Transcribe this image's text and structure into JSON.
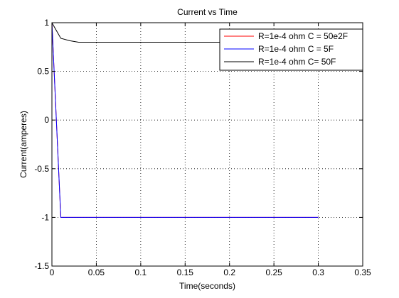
{
  "chart_data": {
    "type": "line",
    "title": "Current vs Time",
    "xlabel": "Time(seconds)",
    "ylabel": "Current(amperes)",
    "xlim": [
      0,
      0.35
    ],
    "ylim": [
      -1.5,
      1
    ],
    "xticks": [
      0,
      0.05,
      0.1,
      0.15,
      0.2,
      0.25,
      0.3,
      0.35
    ],
    "xtick_labels": [
      "0",
      "0.05",
      "0.1",
      "0.15",
      "0.2",
      "0.25",
      "0.3",
      "0.35"
    ],
    "yticks": [
      -1.5,
      -1,
      -0.5,
      0,
      0.5,
      1
    ],
    "ytick_labels": [
      "-1.5",
      "-1",
      "-0.5",
      "0",
      "0.5",
      "1"
    ],
    "grid": true,
    "grid_style": "dotted",
    "legend_position": "top-right",
    "series": [
      {
        "name": "R=1e-4 ohm C = 50e2F",
        "color": "#ff0000",
        "points": [
          [
            0,
            1
          ],
          [
            0.01,
            -1
          ],
          [
            0.02,
            -1
          ],
          [
            0.05,
            -1
          ],
          [
            0.1,
            -1
          ],
          [
            0.15,
            -1
          ],
          [
            0.2,
            -1
          ],
          [
            0.25,
            -1
          ],
          [
            0.3,
            -1
          ]
        ]
      },
      {
        "name": "R=1e-4 ohm C = 5F",
        "color": "#0000ff",
        "points": [
          [
            0,
            1
          ],
          [
            0.01,
            -1
          ],
          [
            0.02,
            -1
          ],
          [
            0.05,
            -1
          ],
          [
            0.1,
            -1
          ],
          [
            0.15,
            -1
          ],
          [
            0.2,
            -1
          ],
          [
            0.25,
            -1
          ],
          [
            0.3,
            -1
          ]
        ]
      },
      {
        "name": "R=1e-4 ohm C= 50F",
        "color": "#000000",
        "points": [
          [
            0,
            1
          ],
          [
            0.005,
            0.92
          ],
          [
            0.01,
            0.84
          ],
          [
            0.02,
            0.815
          ],
          [
            0.03,
            0.8
          ],
          [
            0.05,
            0.8
          ],
          [
            0.1,
            0.8
          ],
          [
            0.15,
            0.8
          ],
          [
            0.2,
            0.8
          ],
          [
            0.25,
            0.8
          ],
          [
            0.3,
            0.8
          ]
        ]
      }
    ]
  }
}
